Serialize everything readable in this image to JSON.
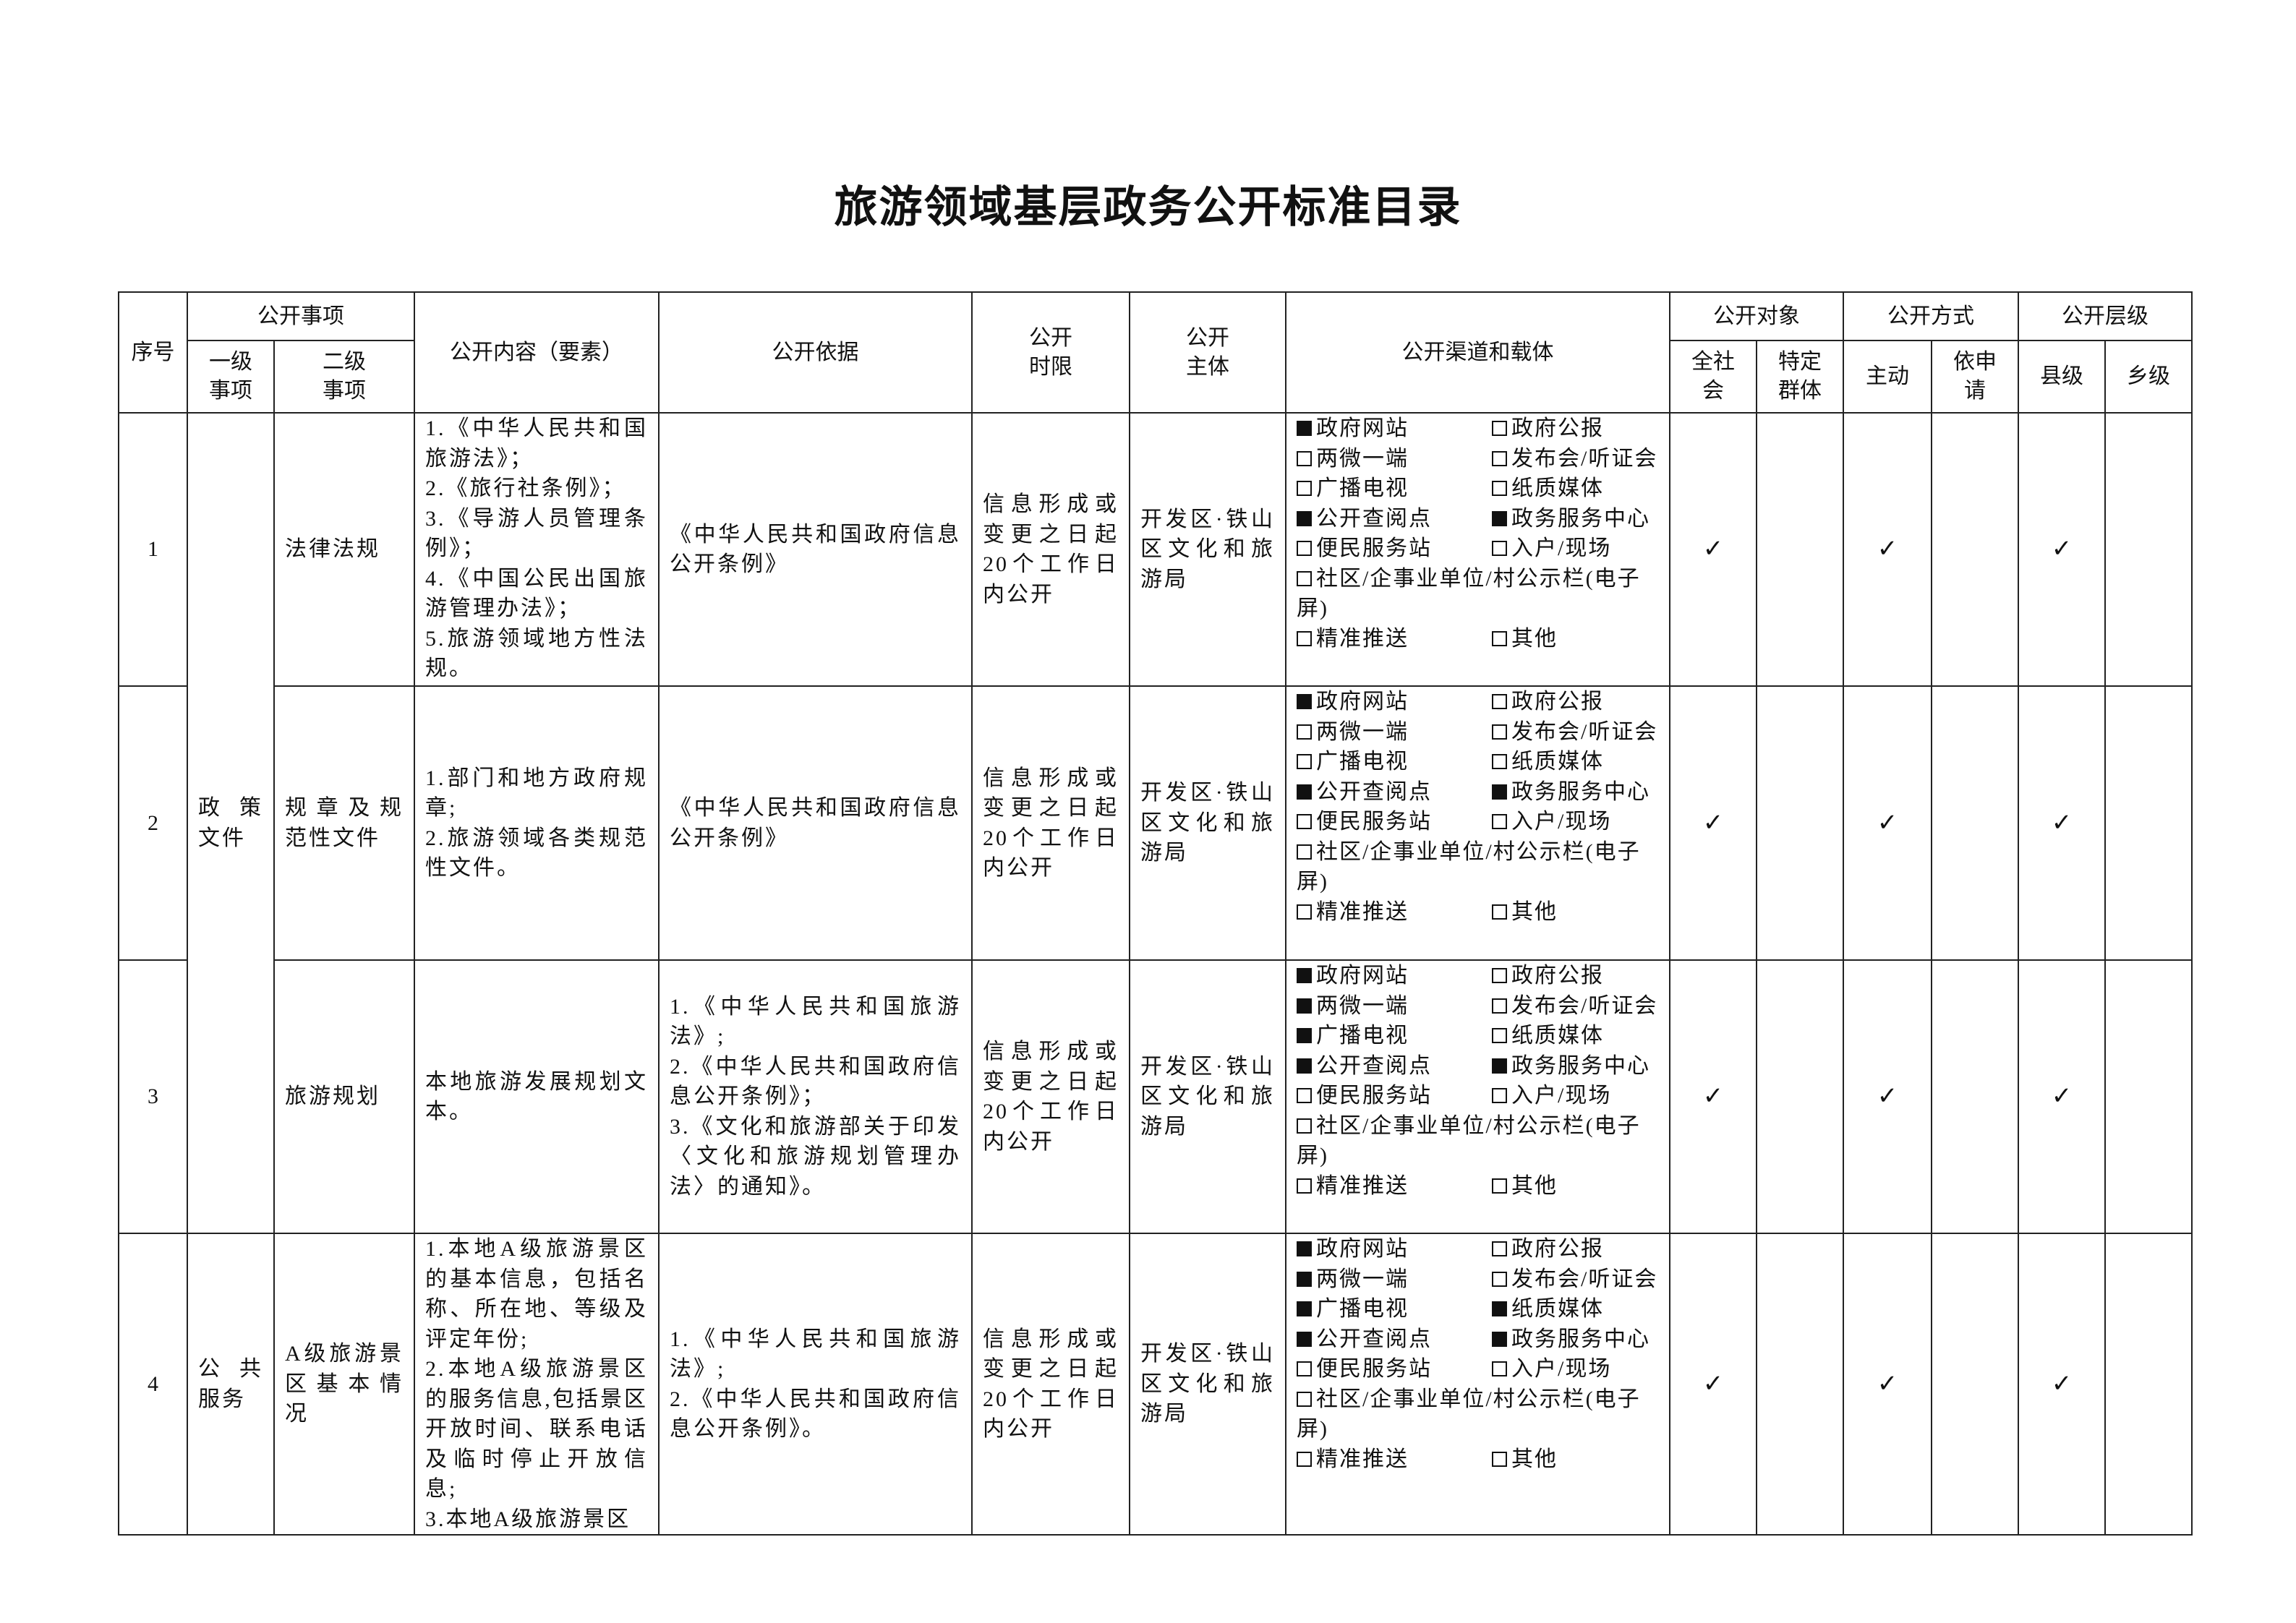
{
  "title": "旅游领域基层政务公开标准目录",
  "headers": {
    "seq": "序号",
    "matter": "公开事项",
    "level1": "一级事项",
    "level2": "二级事项",
    "content": "公开内容（要素）",
    "basis": "公开依据",
    "time_limit": "公开时限",
    "subject": "公开主体",
    "channels": "公开渠道和载体",
    "target": "公开对象",
    "target_all": "全社会",
    "target_specific": "特定群体",
    "method": "公开方式",
    "method_active": "主动",
    "method_request": "依申请",
    "level": "公开层级",
    "level_county": "县级",
    "level_township": "乡级"
  },
  "tick_symbol": "✓",
  "level1_groups": [
    {
      "label": "政策文件",
      "rows": 3
    },
    {
      "label": "公共服务",
      "rows": 1
    }
  ],
  "rows": [
    {
      "seq": "1",
      "level2": "法律法规",
      "content": [
        "1.《中华人民共和国旅游法》；",
        "2.《旅行社条例》；",
        "3.《导游人员管理条例》；",
        "4.《中国公民出国旅游管理办法》；",
        "5.旅游领域地方性法规。"
      ],
      "content_align": "top",
      "basis": [
        "《中华人民共和国政府信息公开条例》"
      ],
      "time_limit": "信息形成或变更之日起20个工作日内公开",
      "subject": "开发区·铁山区文化和旅游局",
      "channels": [
        {
          "label": "政府网站",
          "checked": true
        },
        {
          "label": "政府公报",
          "checked": false
        },
        {
          "label": "两微一端",
          "checked": false
        },
        {
          "label": "发布会/听证会",
          "checked": false
        },
        {
          "label": "广播电视",
          "checked": false
        },
        {
          "label": "纸质媒体",
          "checked": false
        },
        {
          "label": "公开查阅点",
          "checked": true
        },
        {
          "label": "政务服务中心",
          "checked": true
        },
        {
          "label": "便民服务站",
          "checked": false
        },
        {
          "label": "入户/现场",
          "checked": false
        },
        {
          "label": "社区/企事业单位/村公示栏(电子屏)",
          "checked": false
        },
        {
          "label": "精准推送",
          "checked": false
        },
        {
          "label": "其他",
          "checked": false
        }
      ],
      "ticks": {
        "all": true,
        "specific": false,
        "active": true,
        "request": false,
        "county": true,
        "township": false
      }
    },
    {
      "seq": "2",
      "level2": "规章及规范性文件",
      "content": [
        "1.部门和地方政府规章;",
        "2.旅游领域各类规范性文件。"
      ],
      "basis": [
        "《中华人民共和国政府信息公开条例》"
      ],
      "time_limit": "信息形成或变更之日起20个工作日内公开",
      "subject": "开发区·铁山区文化和旅游局",
      "channels": [
        {
          "label": "政府网站",
          "checked": true
        },
        {
          "label": "政府公报",
          "checked": false
        },
        {
          "label": "两微一端",
          "checked": false
        },
        {
          "label": "发布会/听证会",
          "checked": false
        },
        {
          "label": "广播电视",
          "checked": false
        },
        {
          "label": "纸质媒体",
          "checked": false
        },
        {
          "label": "公开查阅点",
          "checked": true
        },
        {
          "label": "政务服务中心",
          "checked": true
        },
        {
          "label": "便民服务站",
          "checked": false
        },
        {
          "label": "入户/现场",
          "checked": false
        },
        {
          "label": "社区/企事业单位/村公示栏(电子屏)",
          "checked": false
        },
        {
          "label": "精准推送",
          "checked": false
        },
        {
          "label": "其他",
          "checked": false
        }
      ],
      "ticks": {
        "all": true,
        "specific": false,
        "active": true,
        "request": false,
        "county": true,
        "township": false
      }
    },
    {
      "seq": "3",
      "level2": "旅游规划",
      "content": [
        "本地旅游发展规划文本。"
      ],
      "basis": [
        "1.《中华人民共和国旅游法》;",
        "2.《中华人民共和国政府信息公开条例》；",
        "3.《文化和旅游部关于印发〈文化和旅游规划管理办法〉的通知》。"
      ],
      "time_limit": "信息形成或变更之日起20个工作日内公开",
      "subject": "开发区·铁山区文化和旅游局",
      "channels": [
        {
          "label": "政府网站",
          "checked": true
        },
        {
          "label": "政府公报",
          "checked": false
        },
        {
          "label": "两微一端",
          "checked": true
        },
        {
          "label": "发布会/听证会",
          "checked": false
        },
        {
          "label": "广播电视",
          "checked": true
        },
        {
          "label": "纸质媒体",
          "checked": false
        },
        {
          "label": "公开查阅点",
          "checked": true
        },
        {
          "label": "政务服务中心",
          "checked": true
        },
        {
          "label": "便民服务站",
          "checked": false
        },
        {
          "label": "入户/现场",
          "checked": false
        },
        {
          "label": "社区/企事业单位/村公示栏(电子屏)",
          "checked": false
        },
        {
          "label": "精准推送",
          "checked": false
        },
        {
          "label": "其他",
          "checked": false
        }
      ],
      "ticks": {
        "all": true,
        "specific": false,
        "active": true,
        "request": false,
        "county": true,
        "township": false
      }
    },
    {
      "seq": "4",
      "level2": "A级旅游景区基本情况",
      "content": [
        "1.本地A级旅游景区的基本信息，包括名称、所在地、等级及评定年份;",
        "2.本地A级旅游景区的服务信息,包括景区开放时间、联系电话及临时停止开放信息;",
        "3.本地A级旅游景区"
      ],
      "content_align": "top",
      "basis": [
        "1.《中华人民共和国旅游法》;",
        "2.《中华人民共和国政府信息公开条例》。"
      ],
      "time_limit": "信息形成或变更之日起20个工作日内公开",
      "subject": "开发区·铁山区文化和旅游局",
      "channels": [
        {
          "label": "政府网站",
          "checked": true
        },
        {
          "label": "政府公报",
          "checked": false
        },
        {
          "label": "两微一端",
          "checked": true
        },
        {
          "label": "发布会/听证会",
          "checked": false
        },
        {
          "label": "广播电视",
          "checked": true
        },
        {
          "label": "纸质媒体",
          "checked": true
        },
        {
          "label": "公开查阅点",
          "checked": true
        },
        {
          "label": "政务服务中心",
          "checked": true
        },
        {
          "label": "便民服务站",
          "checked": false
        },
        {
          "label": "入户/现场",
          "checked": false
        },
        {
          "label": "社区/企事业单位/村公示栏(电子屏)",
          "checked": false
        },
        {
          "label": "精准推送",
          "checked": false
        },
        {
          "label": "其他",
          "checked": false
        }
      ],
      "ticks": {
        "all": true,
        "specific": false,
        "active": true,
        "request": false,
        "county": true,
        "township": false
      }
    }
  ]
}
